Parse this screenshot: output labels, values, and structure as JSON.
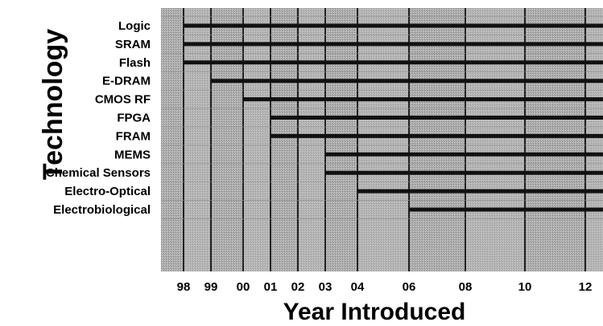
{
  "chart_data": {
    "type": "timeline",
    "ylabel": "Technology",
    "xlabel": "Year Introduced",
    "x_ticks": [
      "98",
      "99",
      "00",
      "01",
      "02",
      "03",
      "04",
      "06",
      "08",
      "10",
      "12"
    ],
    "series": [
      {
        "name": "Logic",
        "start": "98"
      },
      {
        "name": "SRAM",
        "start": "98"
      },
      {
        "name": "Flash",
        "start": "98"
      },
      {
        "name": "E-DRAM",
        "start": "99"
      },
      {
        "name": "CMOS RF",
        "start": "00"
      },
      {
        "name": "FPGA",
        "start": "01"
      },
      {
        "name": "FRAM",
        "start": "01"
      },
      {
        "name": "MEMS",
        "start": "03"
      },
      {
        "name": "Chemical Sensors",
        "start": "03"
      },
      {
        "name": "Electro-Optical",
        "start": "04"
      },
      {
        "name": "Electrobiological",
        "start": "06"
      }
    ]
  },
  "colors": {
    "plot_background": "#a9a9a9",
    "band_light": "#c4c4c4",
    "timeline_line": "#111111",
    "grid_line": "#222222"
  }
}
